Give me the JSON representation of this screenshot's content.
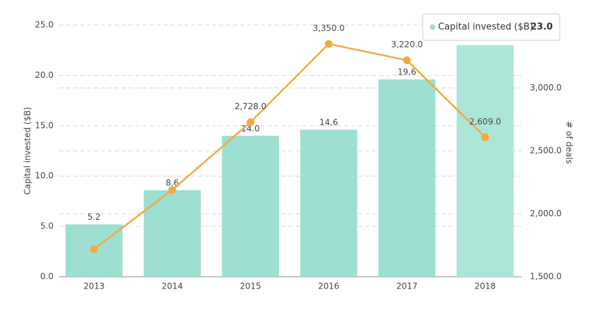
{
  "chart_data": {
    "type": "bar",
    "categories": [
      "2013",
      "2014",
      "2015",
      "2016",
      "2017",
      "2018"
    ],
    "series": [
      {
        "name": "Capital invested ($B)",
        "type": "bar",
        "color": "#9ddfd0",
        "values": [
          5.2,
          8.6,
          14.0,
          14.6,
          19.6,
          23.0
        ],
        "value_labels": [
          "5.2",
          "8.6",
          "14.0",
          "14.6",
          "19.6",
          "23.0"
        ]
      },
      {
        "type": "line",
        "axis": "y2",
        "color": "#f5a742",
        "values": [
          1720,
          2190,
          2728,
          3350,
          3220,
          2609
        ],
        "value_labels": [
          null,
          null,
          "2,728.0",
          "3,350.0",
          "3,220.0",
          "2,609.0"
        ]
      }
    ],
    "ylabel": "Capital invested ($B)",
    "y2label": "# of deals",
    "ylim": [
      0,
      25
    ],
    "yticks": [
      {
        "value": 0,
        "label": "0.0"
      },
      {
        "value": 5,
        "label": "5.0"
      },
      {
        "value": 10,
        "label": "10.0"
      },
      {
        "value": 15,
        "label": "15.0"
      },
      {
        "value": 20,
        "label": "20.0"
      },
      {
        "value": 25,
        "label": "25.0"
      }
    ],
    "y2lim": [
      1500,
      3500
    ],
    "y2ticks": [
      {
        "value": 1500,
        "label": "1,500.0"
      },
      {
        "value": 2000,
        "label": "2,000.0"
      },
      {
        "value": 2500,
        "label": "2,500.0"
      },
      {
        "value": 3000,
        "label": "3,000.0"
      }
    ],
    "grid": true
  }
}
